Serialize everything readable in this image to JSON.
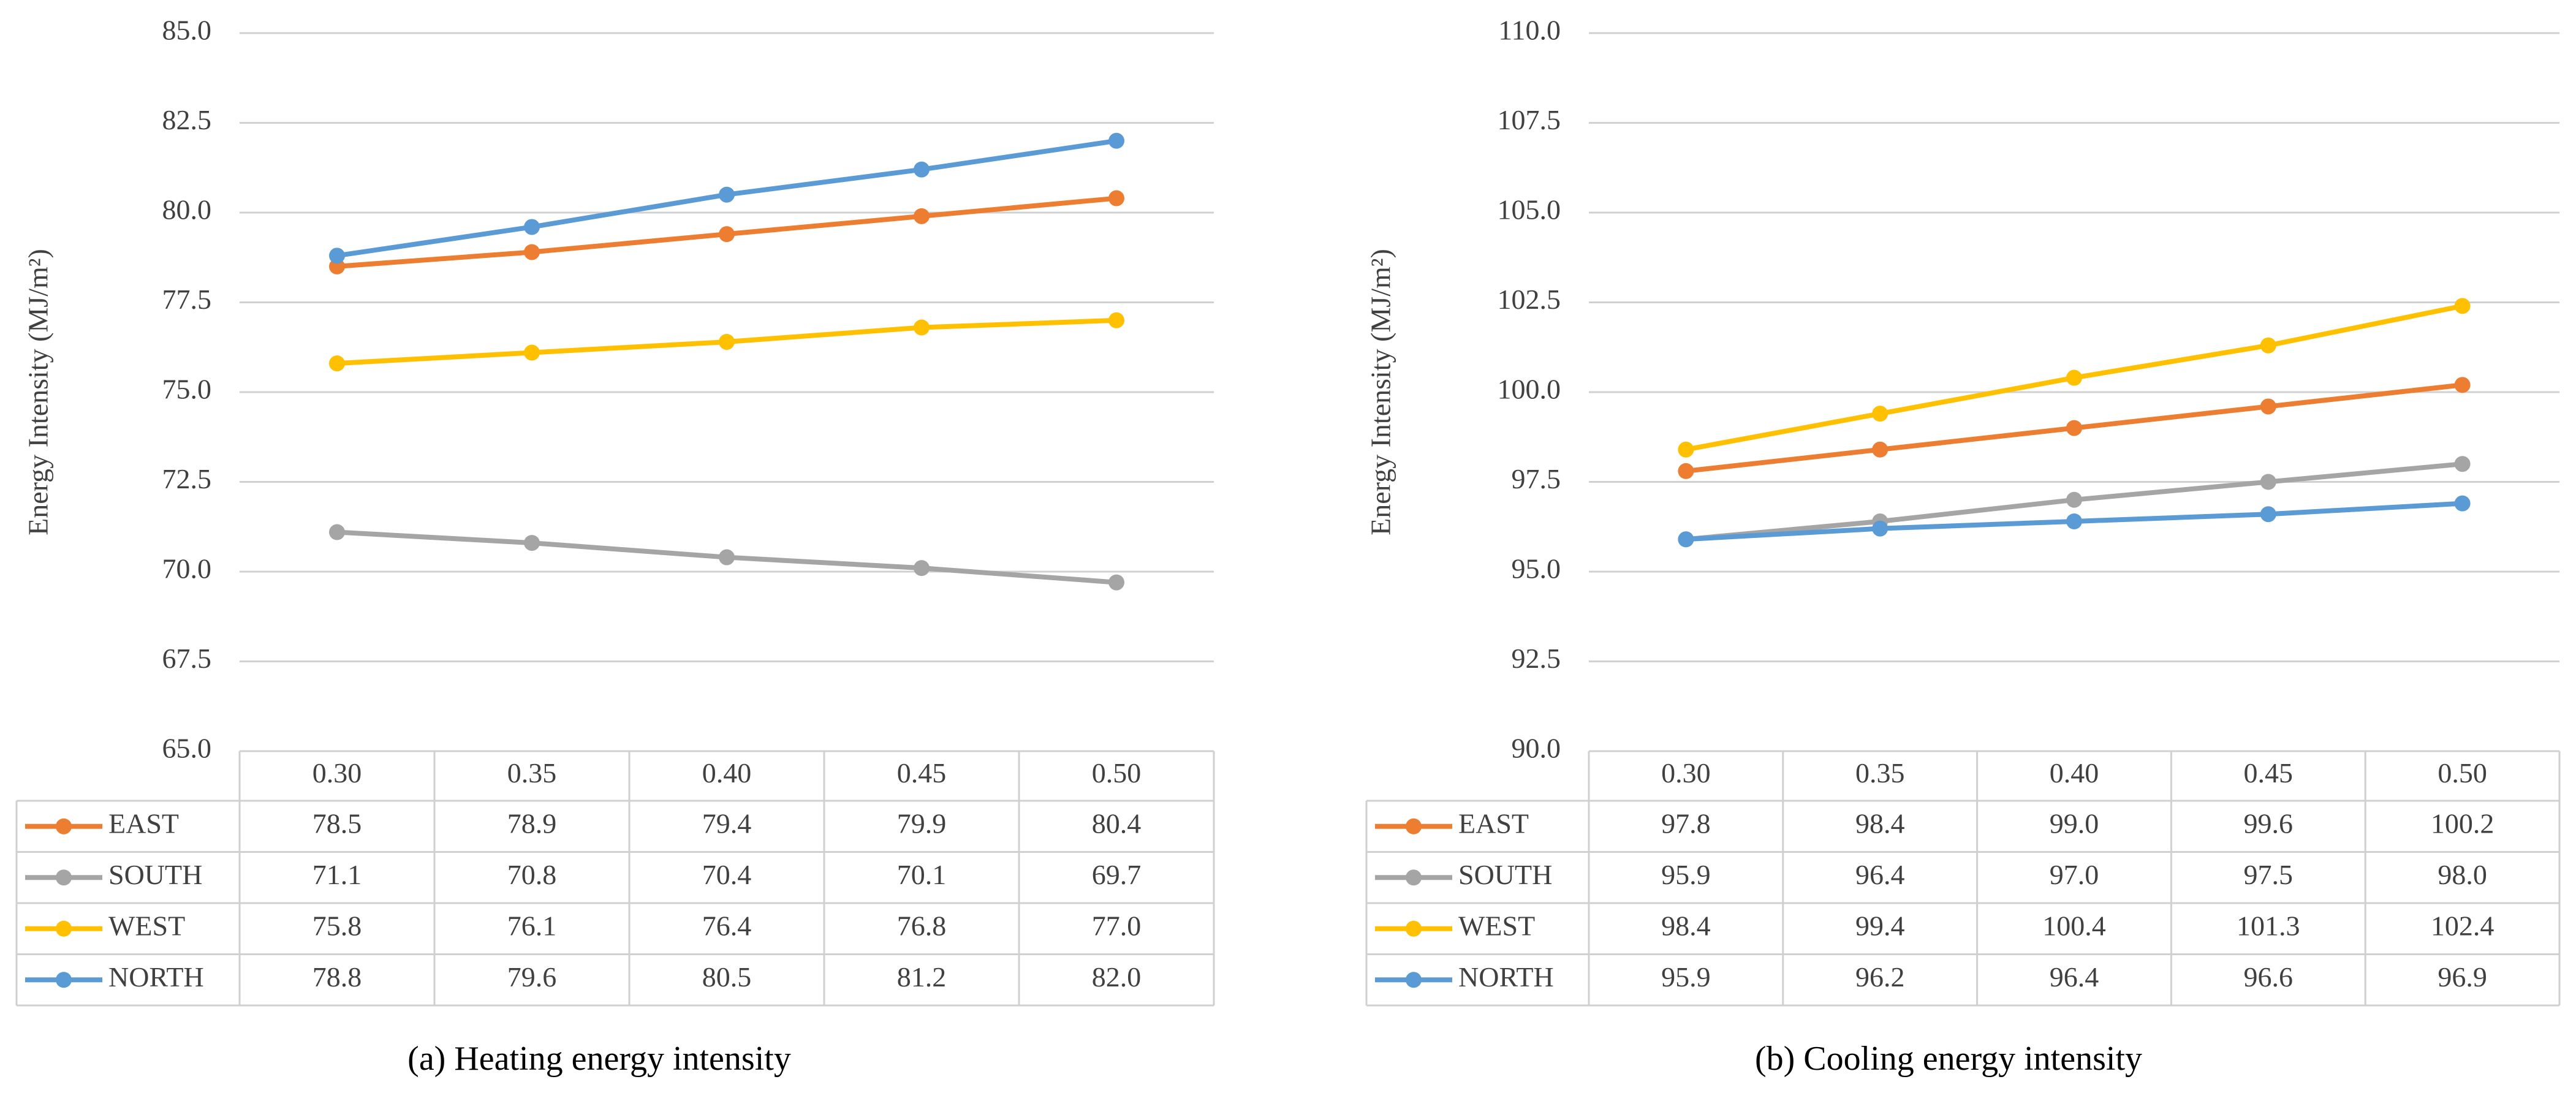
{
  "chart_data": [
    {
      "type": "line",
      "caption": "(a) Heating energy intensity",
      "y_label": "Energy Intensity (MJ/m²)",
      "categories": [
        "0.30",
        "0.35",
        "0.40",
        "0.45",
        "0.50"
      ],
      "ylim": [
        65,
        85
      ],
      "yticks": [
        {
          "value": 65,
          "label": "65.0"
        },
        {
          "value": 67.5,
          "label": "67.5"
        },
        {
          "value": 70,
          "label": "70.0"
        },
        {
          "value": 72.5,
          "label": "72.5"
        },
        {
          "value": 75,
          "label": "75.0"
        },
        {
          "value": 77.5,
          "label": "77.5"
        },
        {
          "value": 80,
          "label": "80.0"
        },
        {
          "value": 82.5,
          "label": "82.5"
        },
        {
          "value": 85,
          "label": "85.0"
        }
      ],
      "grid": true,
      "series": [
        {
          "name": "EAST",
          "color": "#ed7d31",
          "values": [
            78.5,
            78.9,
            79.4,
            79.9,
            80.4
          ],
          "value_labels": [
            "78.5",
            "78.9",
            "79.4",
            "79.9",
            "80.4"
          ]
        },
        {
          "name": "SOUTH",
          "color": "#a5a5a5",
          "values": [
            71.1,
            70.8,
            70.4,
            70.1,
            69.7
          ],
          "value_labels": [
            "71.1",
            "70.8",
            "70.4",
            "70.1",
            "69.7"
          ]
        },
        {
          "name": "WEST",
          "color": "#ffc000",
          "values": [
            75.8,
            76.1,
            76.4,
            76.8,
            77.0
          ],
          "value_labels": [
            "75.8",
            "76.1",
            "76.4",
            "76.8",
            "77.0"
          ]
        },
        {
          "name": "NORTH",
          "color": "#5b9bd5",
          "values": [
            78.8,
            79.6,
            80.5,
            81.2,
            82.0
          ],
          "value_labels": [
            "78.8",
            "79.6",
            "80.5",
            "81.2",
            "82.0"
          ]
        }
      ]
    },
    {
      "type": "line",
      "caption": "(b) Cooling energy intensity",
      "y_label": "Energy Intensity (MJ/m²)",
      "categories": [
        "0.30",
        "0.35",
        "0.40",
        "0.45",
        "0.50"
      ],
      "ylim": [
        90,
        110
      ],
      "yticks": [
        {
          "value": 90,
          "label": "90.0"
        },
        {
          "value": 92.5,
          "label": "92.5"
        },
        {
          "value": 95,
          "label": "95.0"
        },
        {
          "value": 97.5,
          "label": "97.5"
        },
        {
          "value": 100,
          "label": "100.0"
        },
        {
          "value": 102.5,
          "label": "102.5"
        },
        {
          "value": 105,
          "label": "105.0"
        },
        {
          "value": 107.5,
          "label": "107.5"
        },
        {
          "value": 110,
          "label": "110.0"
        }
      ],
      "grid": true,
      "series": [
        {
          "name": "EAST",
          "color": "#ed7d31",
          "values": [
            97.8,
            98.4,
            99.0,
            99.6,
            100.2
          ],
          "value_labels": [
            "97.8",
            "98.4",
            "99.0",
            "99.6",
            "100.2"
          ]
        },
        {
          "name": "SOUTH",
          "color": "#a5a5a5",
          "values": [
            95.9,
            96.4,
            97.0,
            97.5,
            98.0
          ],
          "value_labels": [
            "95.9",
            "96.4",
            "97.0",
            "97.5",
            "98.0"
          ]
        },
        {
          "name": "WEST",
          "color": "#ffc000",
          "values": [
            98.4,
            99.4,
            100.4,
            101.3,
            102.4
          ],
          "value_labels": [
            "98.4",
            "99.4",
            "100.4",
            "101.3",
            "102.4"
          ]
        },
        {
          "name": "NORTH",
          "color": "#5b9bd5",
          "values": [
            95.9,
            96.2,
            96.4,
            96.6,
            96.9
          ],
          "value_labels": [
            "95.9",
            "96.2",
            "96.4",
            "96.6",
            "96.9"
          ]
        }
      ]
    }
  ]
}
